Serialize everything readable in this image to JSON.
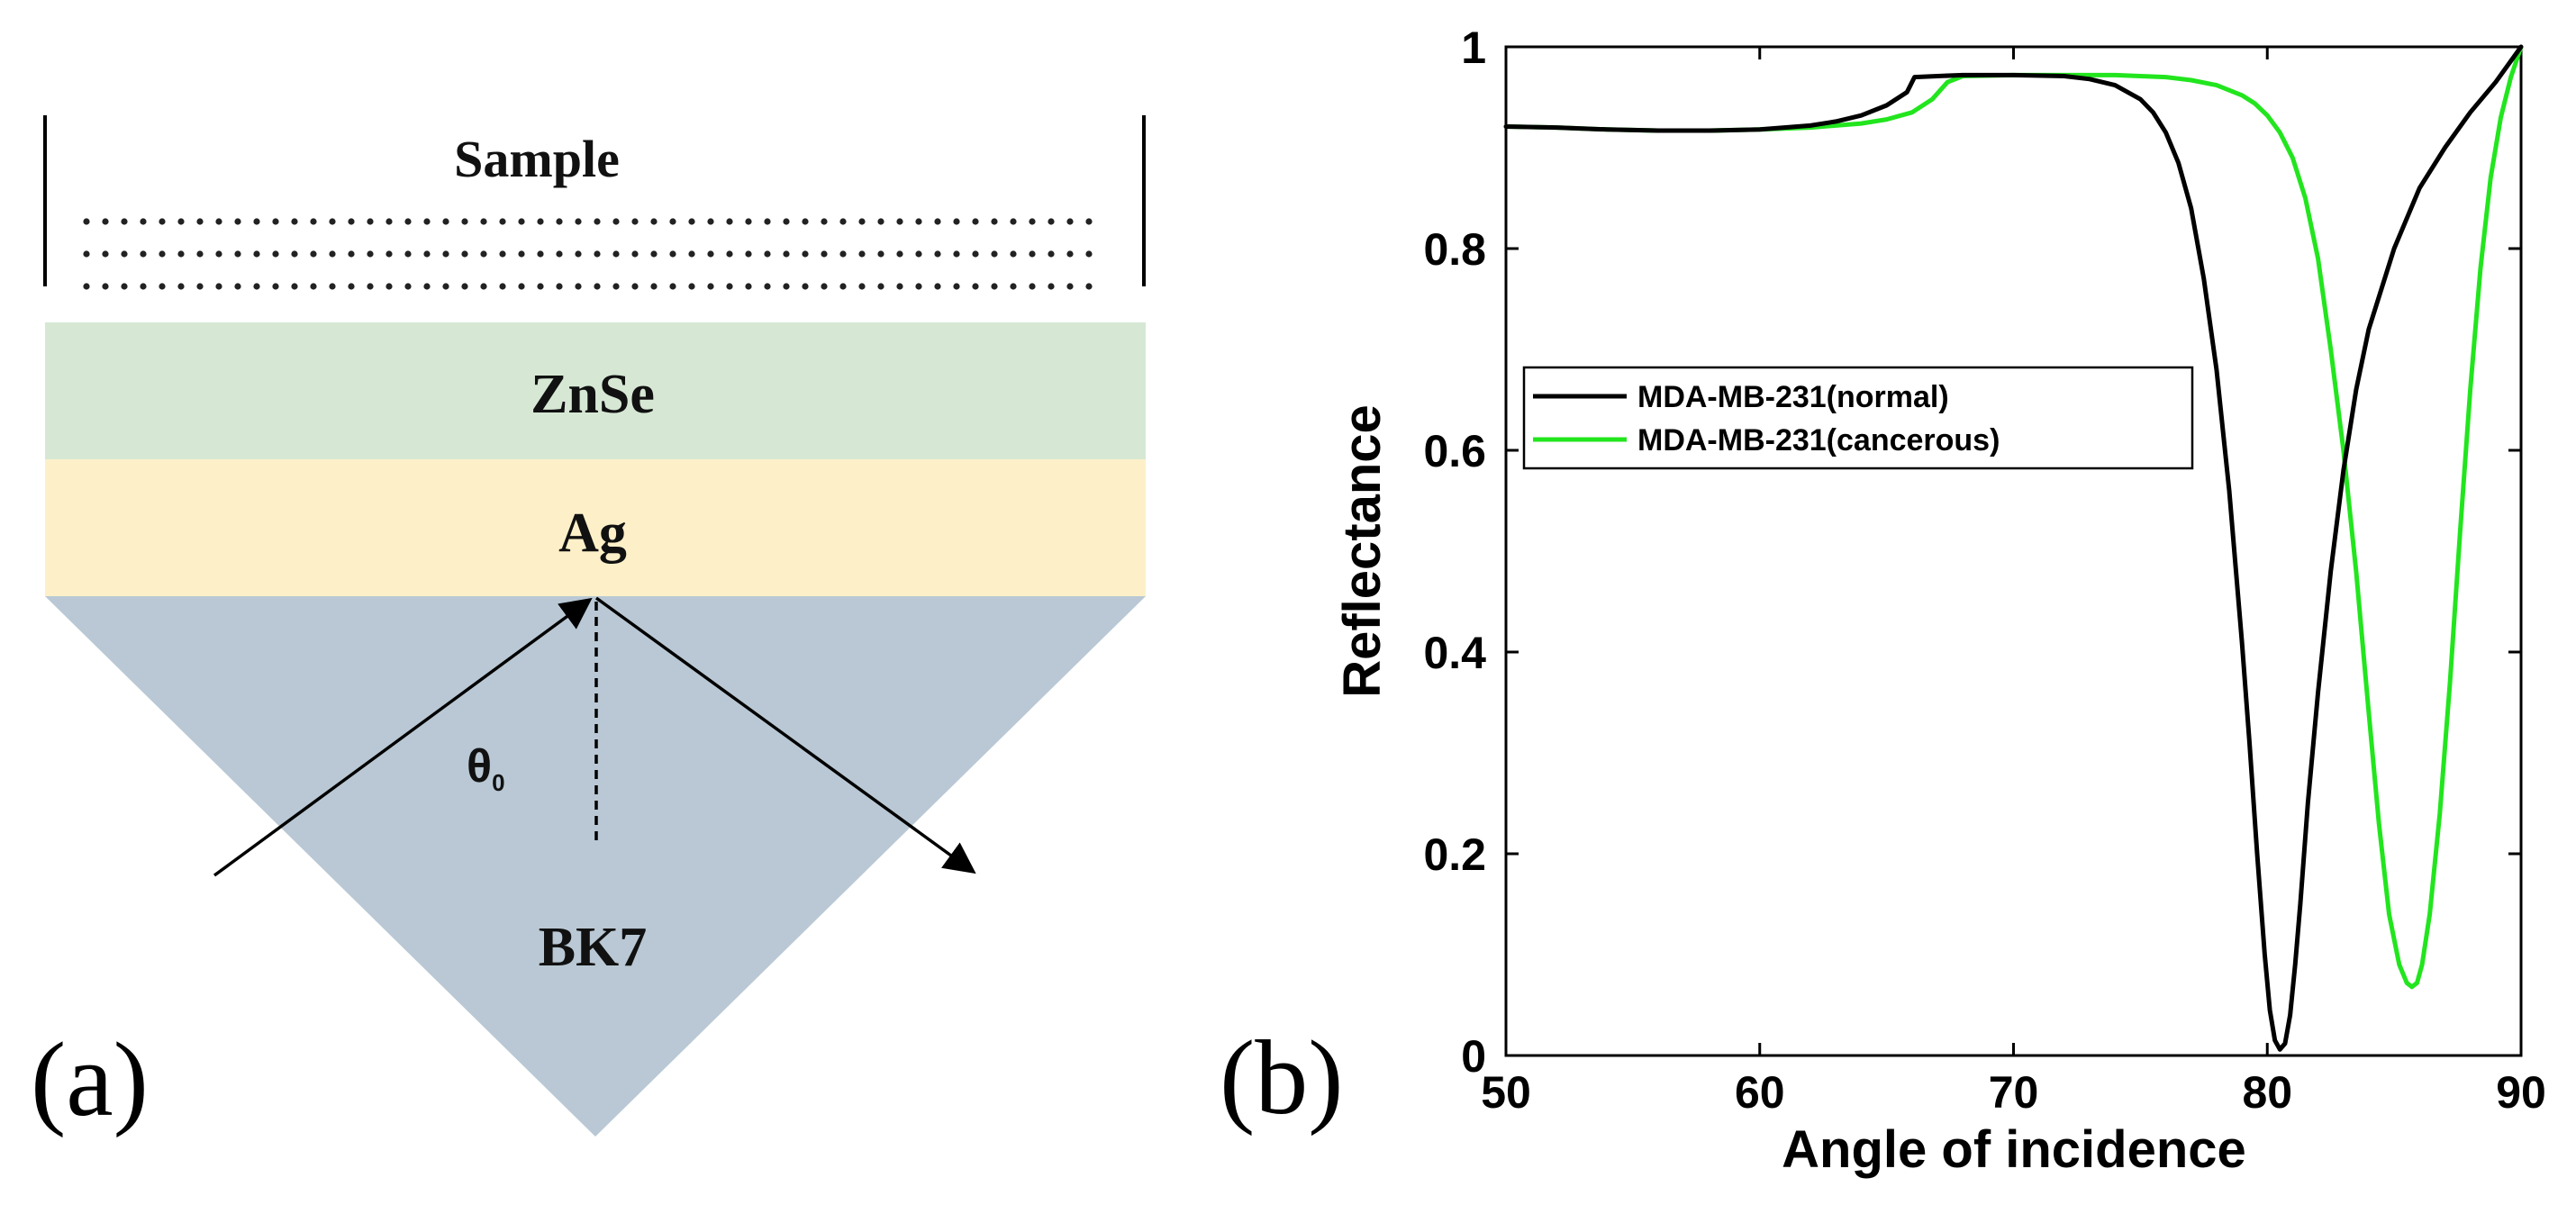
{
  "panel_a": {
    "label": "(a)",
    "layers": {
      "sample": "Sample",
      "znse": "ZnSe",
      "ag": "Ag",
      "prism": "BK7"
    },
    "angle_symbol": "θ",
    "angle_subscript": "0",
    "colors": {
      "znse": "#d6e8d4",
      "ag": "#fdf0c8",
      "prism": "#b9c8d4"
    }
  },
  "panel_b": {
    "label": "(b)"
  },
  "chart_data": {
    "type": "line",
    "title": "",
    "xlabel": "Angle of incidence",
    "ylabel": "Reflectance",
    "xlim": [
      50,
      90
    ],
    "ylim": [
      0,
      1
    ],
    "xticks": [
      50,
      60,
      70,
      80,
      90
    ],
    "yticks": [
      0,
      0.2,
      0.4,
      0.6,
      0.8,
      1
    ],
    "ytick_labels": [
      "0",
      "0.2",
      "0.4",
      "0.6",
      "0.8",
      "1"
    ],
    "legend_position": "middle-left",
    "series": [
      {
        "name": "MDA-MB-231(normal)",
        "color": "#000000",
        "x": [
          50,
          52,
          54,
          56,
          58,
          60,
          62,
          63,
          64,
          65,
          65.8,
          66.1,
          67,
          68,
          70,
          72,
          73,
          74,
          75,
          75.5,
          76,
          76.5,
          77,
          77.5,
          78,
          78.5,
          79,
          79.3,
          79.6,
          79.9,
          80.1,
          80.3,
          80.5,
          80.7,
          80.9,
          81.1,
          81.3,
          81.6,
          82,
          82.5,
          83,
          83.5,
          84,
          85,
          86,
          87,
          88,
          89,
          90
        ],
        "y": [
          0.921,
          0.92,
          0.918,
          0.917,
          0.917,
          0.918,
          0.922,
          0.926,
          0.932,
          0.942,
          0.955,
          0.97,
          0.971,
          0.972,
          0.972,
          0.971,
          0.968,
          0.962,
          0.948,
          0.935,
          0.915,
          0.885,
          0.84,
          0.77,
          0.68,
          0.56,
          0.41,
          0.31,
          0.2,
          0.1,
          0.045,
          0.015,
          0.006,
          0.012,
          0.04,
          0.09,
          0.15,
          0.25,
          0.36,
          0.48,
          0.58,
          0.66,
          0.72,
          0.8,
          0.86,
          0.9,
          0.935,
          0.965,
          1.0
        ]
      },
      {
        "name": "MDA-MB-231(cancerous)",
        "color": "#22e51e",
        "x": [
          50,
          52,
          54,
          56,
          58,
          60,
          62,
          64,
          65,
          66,
          66.8,
          67.4,
          68,
          70,
          72,
          74,
          75,
          76,
          77,
          78,
          79,
          79.5,
          80,
          80.5,
          81,
          81.5,
          82,
          82.5,
          83,
          83.5,
          84,
          84.4,
          84.8,
          85.2,
          85.5,
          85.7,
          85.9,
          86.1,
          86.4,
          86.8,
          87.2,
          87.6,
          88,
          88.4,
          88.8,
          89.2,
          89.6,
          90
        ],
        "y": [
          0.921,
          0.92,
          0.918,
          0.917,
          0.917,
          0.918,
          0.92,
          0.924,
          0.928,
          0.935,
          0.948,
          0.965,
          0.971,
          0.972,
          0.972,
          0.972,
          0.971,
          0.97,
          0.967,
          0.962,
          0.952,
          0.944,
          0.932,
          0.915,
          0.89,
          0.85,
          0.79,
          0.7,
          0.6,
          0.48,
          0.34,
          0.23,
          0.14,
          0.09,
          0.072,
          0.068,
          0.072,
          0.09,
          0.14,
          0.24,
          0.37,
          0.52,
          0.66,
          0.78,
          0.87,
          0.93,
          0.97,
          1.0
        ]
      }
    ]
  }
}
